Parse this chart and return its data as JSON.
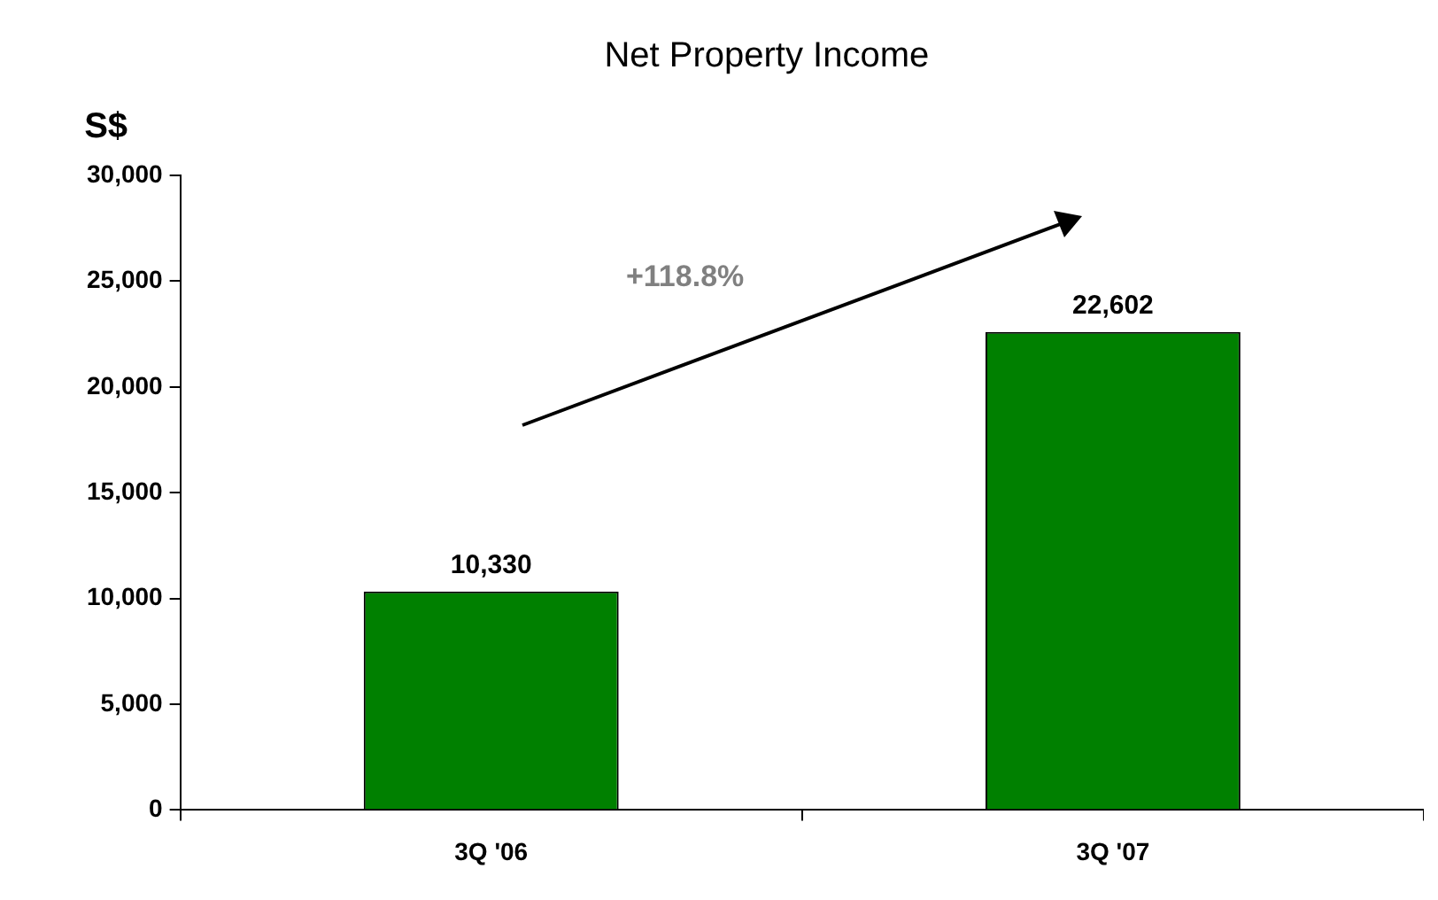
{
  "chart_data": {
    "type": "bar",
    "title": "Net Property Income",
    "ylabel": "S$",
    "categories": [
      "3Q '06",
      "3Q '07"
    ],
    "values": [
      10330,
      22602
    ],
    "color": "#008000",
    "ylim": [
      0,
      30000
    ],
    "yticks": [
      {
        "value": 0,
        "label": "0"
      },
      {
        "value": 5000,
        "label": "5,000"
      },
      {
        "value": 10000,
        "label": "10,000"
      },
      {
        "value": 15000,
        "label": "15,000"
      },
      {
        "value": 20000,
        "label": "20,000"
      },
      {
        "value": 25000,
        "label": "25,000"
      },
      {
        "value": 30000,
        "label": "30,000"
      }
    ],
    "value_labels": [
      "10,330",
      "22,602"
    ],
    "annotations": [
      "+118.8%"
    ],
    "grid": false,
    "legend": false
  }
}
